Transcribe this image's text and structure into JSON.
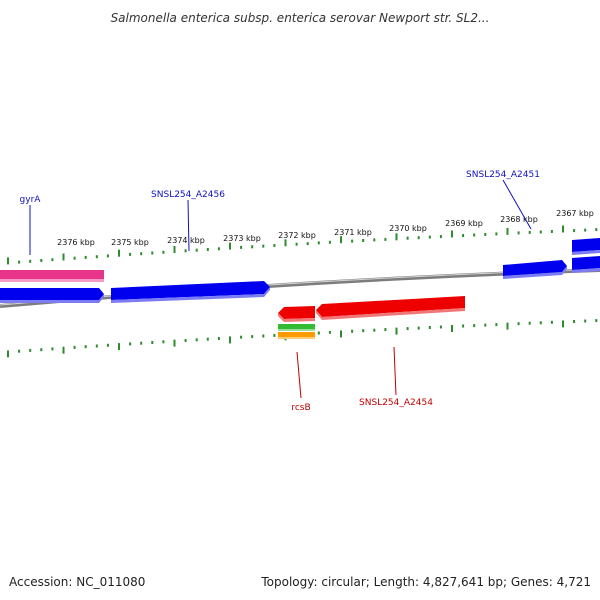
{
  "title": "Salmonella enterica subsp. enterica serovar Newport str. SL2...",
  "footer": {
    "accession": "Accession: NC_011080",
    "summary": "Topology: circular; Length: 4,827,641 bp; Genes: 4,721"
  },
  "colors": {
    "backbone": "#7d7d7d",
    "ticks": "#2e8b2e",
    "forward_gene": "#0000ee",
    "reverse_gene": "#ee0000",
    "rna_pink": "#e8348a",
    "label_blue": "#1010c0",
    "label_red": "#c00000",
    "feature_green": "#33bb33",
    "feature_orange": "#ff9900"
  },
  "scale": {
    "unit": "kbp",
    "labels": [
      "2376 kbp",
      "2375 kbp",
      "2374 kbp",
      "2373 kbp",
      "2372 kbp",
      "2371 kbp",
      "2370 kbp",
      "2369 kbp",
      "2368 kbp",
      "2367 kbp"
    ]
  },
  "gene_labels": {
    "gyrA": "gyrA",
    "a2456": "SNSL254_A2456",
    "a2451": "SNSL254_A2451",
    "rcsB": "rcsB",
    "a2454": "SNSL254_A2454"
  },
  "tracks": {
    "forward": [
      "gyrA",
      "SNSL254_A2456",
      "SNSL254_A2451"
    ],
    "reverse": [
      "rcsB",
      "SNSL254_A2454"
    ]
  }
}
